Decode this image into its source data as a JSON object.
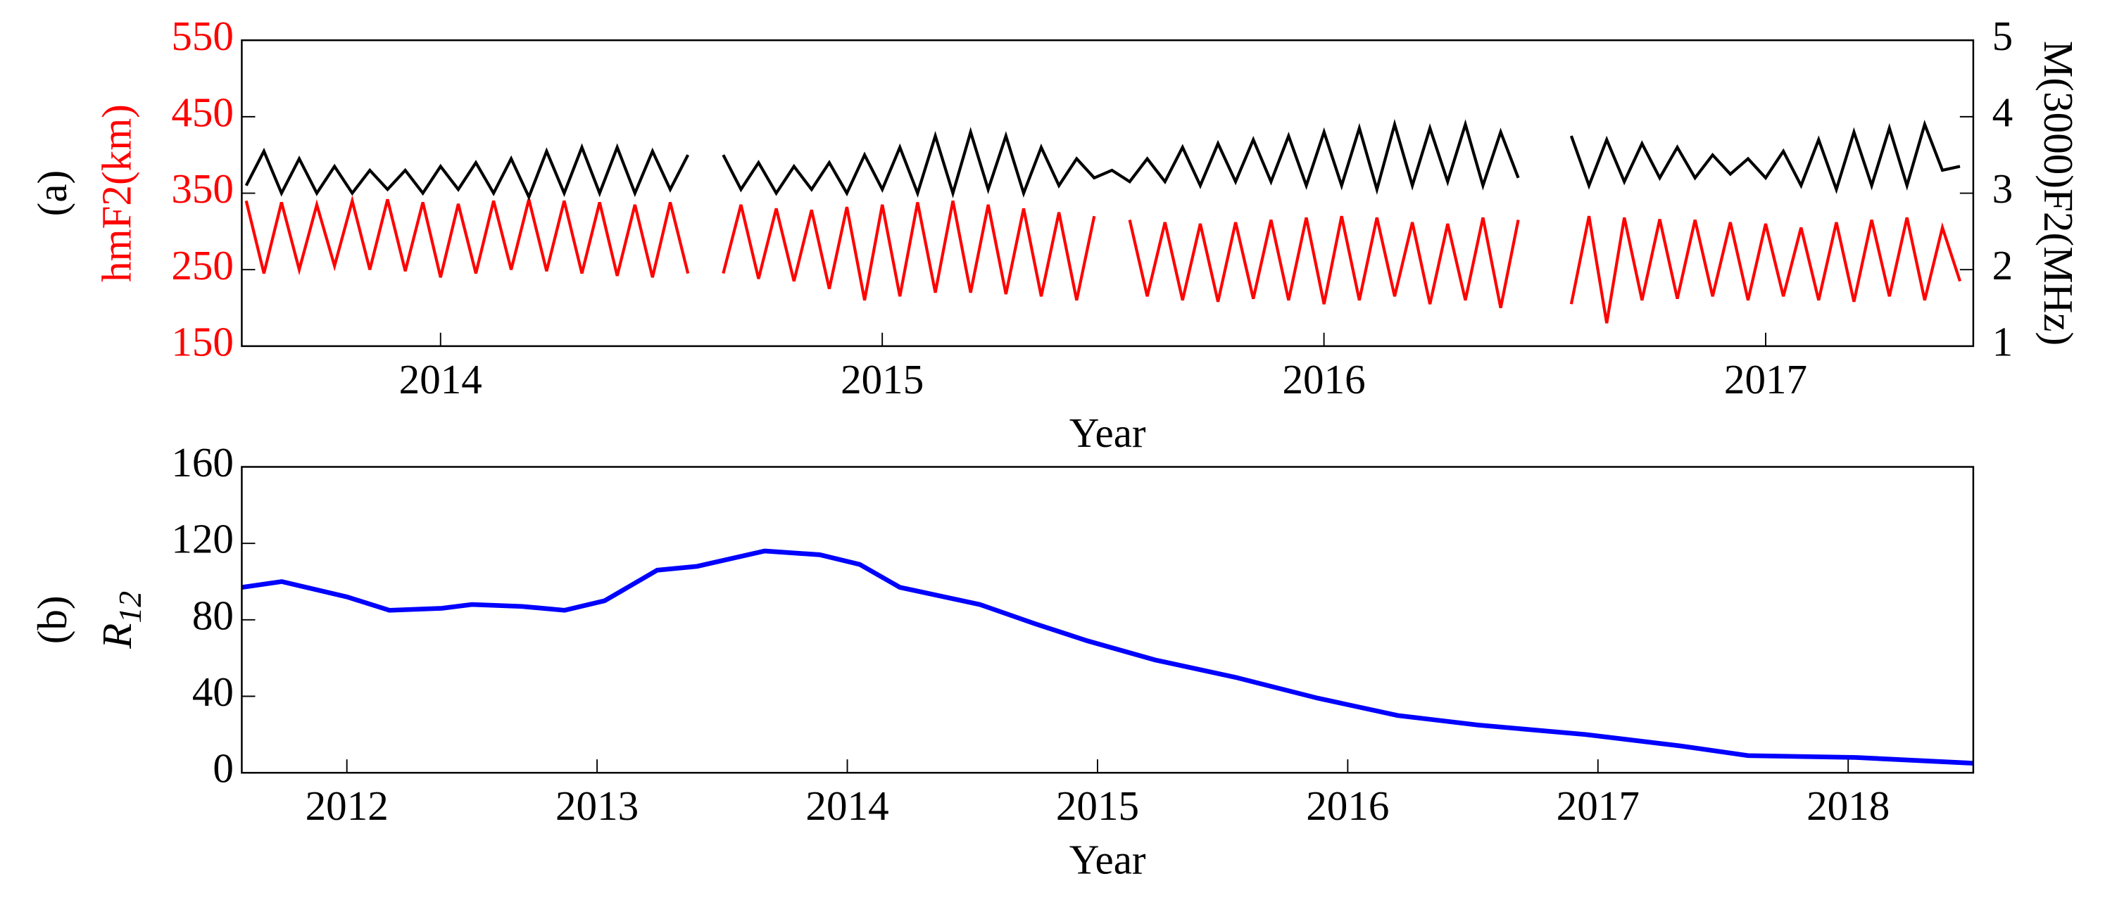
{
  "chart_data": [
    {
      "type": "line",
      "panel_label": "(a)",
      "xlabel": "Year",
      "ylabel": "hmF2(km)",
      "y2label": "M(3000)F2(MHz)",
      "ylabel_color": "#ff0000",
      "xlim": [
        2014.05,
        2017.97
      ],
      "xticks": [
        {
          "value": 2014.5,
          "label": "2014"
        },
        {
          "value": 2015.5,
          "label": "2015"
        },
        {
          "value": 2016.5,
          "label": "2016"
        },
        {
          "value": 2017.5,
          "label": "2017"
        }
      ],
      "ylim": [
        150,
        550
      ],
      "yticks": [
        150,
        250,
        350,
        450,
        550
      ],
      "y2lim": [
        1,
        5
      ],
      "y2ticks": [
        1,
        2,
        3,
        4,
        5
      ],
      "x": [
        2014.06,
        2014.1,
        2014.14,
        2014.18,
        2014.22,
        2014.26,
        2014.3,
        2014.34,
        2014.38,
        2014.42,
        2014.46,
        2014.5,
        2014.54,
        2014.58,
        2014.62,
        2014.66,
        2014.7,
        2014.74,
        2014.78,
        2014.82,
        2014.86,
        2014.9,
        2014.94,
        2014.98,
        2015.02,
        2015.06,
        2015.1,
        2015.14,
        2015.18,
        2015.22,
        2015.26,
        2015.3,
        2015.34,
        2015.38,
        2015.42,
        2015.46,
        2015.5,
        2015.54,
        2015.58,
        2015.62,
        2015.66,
        2015.7,
        2015.74,
        2015.78,
        2015.82,
        2015.86,
        2015.9,
        2015.94,
        2015.98,
        2016.02,
        2016.06,
        2016.1,
        2016.14,
        2016.18,
        2016.22,
        2016.26,
        2016.3,
        2016.34,
        2016.38,
        2016.42,
        2016.46,
        2016.5,
        2016.54,
        2016.58,
        2016.62,
        2016.66,
        2016.7,
        2016.74,
        2016.78,
        2016.82,
        2016.86,
        2016.9,
        2016.94,
        2016.98,
        2017.02,
        2017.06,
        2017.1,
        2017.14,
        2017.18,
        2017.22,
        2017.26,
        2017.3,
        2017.34,
        2017.38,
        2017.42,
        2017.46,
        2017.5,
        2017.54,
        2017.58,
        2017.62,
        2017.66,
        2017.7,
        2017.74,
        2017.78,
        2017.82,
        2017.86,
        2017.9,
        2017.94
      ],
      "series": [
        {
          "color": "#ff0000",
          "values": [
            340,
            245,
            338,
            250,
            335,
            255,
            340,
            250,
            342,
            248,
            338,
            240,
            336,
            245,
            340,
            250,
            342,
            248,
            340,
            245,
            338,
            242,
            335,
            240,
            338,
            245,
            null,
            245,
            335,
            238,
            330,
            235,
            328,
            225,
            332,
            210,
            335,
            215,
            338,
            220,
            340,
            220,
            335,
            218,
            330,
            215,
            325,
            210,
            320,
            null,
            315,
            215,
            312,
            210,
            310,
            208,
            312,
            212,
            315,
            210,
            318,
            205,
            320,
            210,
            318,
            215,
            312,
            205,
            310,
            210,
            318,
            200,
            315,
            null,
            null,
            205,
            320,
            180,
            318,
            210,
            316,
            212,
            315,
            215,
            312,
            210,
            310,
            215,
            305,
            210,
            312,
            208,
            315,
            215,
            318,
            210,
            305,
            235
          ]
        },
        {
          "color": "#000000",
          "axis": "y2",
          "values": [
            3.1,
            3.55,
            3.0,
            3.45,
            3.0,
            3.35,
            3.0,
            3.3,
            3.05,
            3.3,
            3.0,
            3.35,
            3.05,
            3.4,
            3.0,
            3.45,
            2.95,
            3.55,
            3.0,
            3.6,
            3.0,
            3.6,
            3.0,
            3.55,
            3.05,
            3.5,
            null,
            3.5,
            3.05,
            3.4,
            3.0,
            3.35,
            3.05,
            3.4,
            3.0,
            3.5,
            3.05,
            3.6,
            3.0,
            3.75,
            3.0,
            3.8,
            3.05,
            3.75,
            3.0,
            3.6,
            3.1,
            3.45,
            3.2,
            3.3,
            3.15,
            3.45,
            3.15,
            3.6,
            3.1,
            3.65,
            3.15,
            3.7,
            3.15,
            3.75,
            3.1,
            3.8,
            3.1,
            3.85,
            3.05,
            3.9,
            3.1,
            3.85,
            3.15,
            3.9,
            3.1,
            3.8,
            3.2,
            null,
            null,
            3.75,
            3.1,
            3.7,
            3.15,
            3.65,
            3.2,
            3.6,
            3.2,
            3.5,
            3.25,
            3.45,
            3.2,
            3.55,
            3.1,
            3.7,
            3.05,
            3.8,
            3.1,
            3.85,
            3.1,
            3.9,
            3.3,
            3.35
          ]
        }
      ]
    },
    {
      "type": "line",
      "panel_label": "(b)",
      "xlabel": "Year",
      "ylabel": {
        "text": "R",
        "subscript": "12"
      },
      "xlim": [
        2012.08,
        2019.0
      ],
      "xticks": [
        {
          "value": 2012.5,
          "label": "2012"
        },
        {
          "value": 2013.5,
          "label": "2013"
        },
        {
          "value": 2014.5,
          "label": "2014"
        },
        {
          "value": 2015.5,
          "label": "2015"
        },
        {
          "value": 2016.5,
          "label": "2016"
        },
        {
          "value": 2017.5,
          "label": "2017"
        },
        {
          "value": 2018.5,
          "label": "2018"
        }
      ],
      "ylim": [
        0,
        160
      ],
      "yticks": [
        0,
        40,
        80,
        120,
        160
      ],
      "x": [
        2012.08,
        2012.24,
        2012.5,
        2012.67,
        2012.88,
        2013.0,
        2013.2,
        2013.37,
        2013.53,
        2013.74,
        2013.9,
        2014.17,
        2014.39,
        2014.55,
        2014.71,
        2015.03,
        2015.25,
        2015.46,
        2015.73,
        2016.05,
        2016.38,
        2016.7,
        2017.02,
        2017.45,
        2017.83,
        2018.1,
        2018.53,
        2019.0
      ],
      "series": [
        {
          "color": "#0000ff",
          "values": [
            97,
            100,
            92,
            85,
            86,
            88,
            87,
            85,
            90,
            106,
            108,
            116,
            114,
            109,
            97,
            88,
            78,
            69,
            59,
            50,
            39,
            30,
            25,
            20,
            14,
            9,
            8,
            5
          ]
        }
      ]
    }
  ]
}
